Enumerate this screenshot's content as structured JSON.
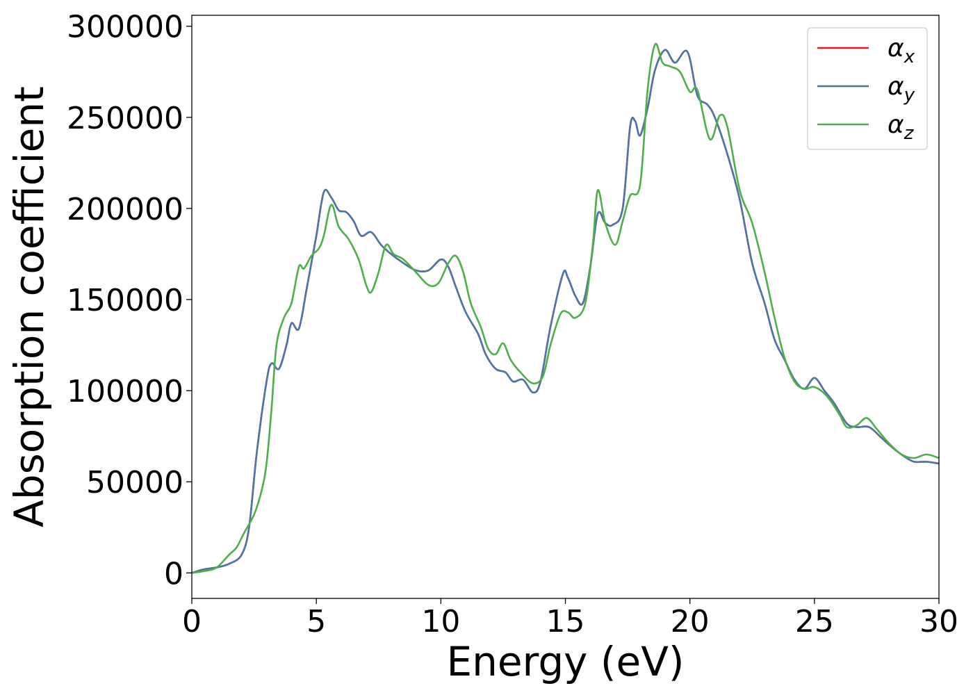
{
  "chart_data": {
    "type": "line",
    "title": "",
    "xlabel": "Energy (eV)",
    "ylabel": "Absorption coefficient",
    "xlim": [
      0,
      30
    ],
    "ylim": [
      -14000,
      306000
    ],
    "xticks": [
      0,
      5,
      10,
      15,
      20,
      25,
      30
    ],
    "xtick_labels": [
      "0",
      "5",
      "10",
      "15",
      "20",
      "25",
      "30"
    ],
    "yticks": [
      0,
      50000,
      100000,
      150000,
      200000,
      250000,
      300000
    ],
    "ytick_labels": [
      "0",
      "50000",
      "100000",
      "150000",
      "200000",
      "250000",
      "300000"
    ],
    "grid": false,
    "legend_position": "top-right",
    "series": [
      {
        "name": "α",
        "subscript": "x",
        "color": "#e41a1c",
        "points": [
          [
            0,
            0
          ],
          [
            0.5,
            2000
          ],
          [
            1,
            3000
          ],
          [
            1.5,
            5000
          ],
          [
            2,
            10000
          ],
          [
            2.3,
            25000
          ],
          [
            2.6,
            65000
          ],
          [
            3,
            105000
          ],
          [
            3.2,
            115000
          ],
          [
            3.5,
            112000
          ],
          [
            3.8,
            125000
          ],
          [
            4,
            137000
          ],
          [
            4.3,
            134000
          ],
          [
            4.6,
            155000
          ],
          [
            4.8,
            170000
          ],
          [
            5,
            185000
          ],
          [
            5.3,
            209000
          ],
          [
            5.6,
            206000
          ],
          [
            5.9,
            199000
          ],
          [
            6.2,
            198000
          ],
          [
            6.5,
            193000
          ],
          [
            6.8,
            185000
          ],
          [
            7.2,
            187000
          ],
          [
            7.6,
            180000
          ],
          [
            8,
            175000
          ],
          [
            8.5,
            170000
          ],
          [
            9,
            166000
          ],
          [
            9.5,
            166000
          ],
          [
            10,
            172000
          ],
          [
            10.3,
            168000
          ],
          [
            10.6,
            157000
          ],
          [
            11,
            143000
          ],
          [
            11.5,
            131000
          ],
          [
            11.8,
            120000
          ],
          [
            12.2,
            112000
          ],
          [
            12.6,
            110000
          ],
          [
            12.9,
            105000
          ],
          [
            13.3,
            106000
          ],
          [
            13.7,
            99000
          ],
          [
            14,
            105000
          ],
          [
            14.4,
            135000
          ],
          [
            14.9,
            164000
          ],
          [
            15.1,
            162000
          ],
          [
            15.4,
            152000
          ],
          [
            15.7,
            148000
          ],
          [
            16,
            168000
          ],
          [
            16.3,
            197000
          ],
          [
            16.6,
            192000
          ],
          [
            16.9,
            191000
          ],
          [
            17.3,
            200000
          ],
          [
            17.6,
            245000
          ],
          [
            17.8,
            248000
          ],
          [
            18,
            240000
          ],
          [
            18.3,
            255000
          ],
          [
            18.6,
            276000
          ],
          [
            19,
            287000
          ],
          [
            19.4,
            280000
          ],
          [
            19.9,
            286000
          ],
          [
            20.3,
            262000
          ],
          [
            20.7,
            257000
          ],
          [
            21,
            250000
          ],
          [
            21.5,
            230000
          ],
          [
            22,
            205000
          ],
          [
            22.5,
            170000
          ],
          [
            23,
            148000
          ],
          [
            23.4,
            128000
          ],
          [
            23.8,
            117000
          ],
          [
            24.2,
            106000
          ],
          [
            24.6,
            101000
          ],
          [
            25,
            107000
          ],
          [
            25.4,
            100000
          ],
          [
            25.8,
            93000
          ],
          [
            26.3,
            82000
          ],
          [
            26.7,
            80000
          ],
          [
            27.2,
            80000
          ],
          [
            27.7,
            74000
          ],
          [
            28.2,
            68000
          ],
          [
            28.6,
            64000
          ],
          [
            29,
            61000
          ],
          [
            29.5,
            61000
          ],
          [
            30,
            60000
          ]
        ]
      },
      {
        "name": "α",
        "subscript": "y",
        "color": "#4a77a8",
        "points": [
          [
            0,
            0
          ],
          [
            0.5,
            2000
          ],
          [
            1,
            3000
          ],
          [
            1.5,
            5000
          ],
          [
            2,
            10000
          ],
          [
            2.3,
            25000
          ],
          [
            2.6,
            65000
          ],
          [
            3,
            105000
          ],
          [
            3.2,
            115000
          ],
          [
            3.5,
            112000
          ],
          [
            3.8,
            125000
          ],
          [
            4,
            137000
          ],
          [
            4.3,
            134000
          ],
          [
            4.6,
            155000
          ],
          [
            4.8,
            170000
          ],
          [
            5,
            185000
          ],
          [
            5.3,
            209000
          ],
          [
            5.6,
            206000
          ],
          [
            5.9,
            199000
          ],
          [
            6.2,
            198000
          ],
          [
            6.5,
            193000
          ],
          [
            6.8,
            185000
          ],
          [
            7.2,
            187000
          ],
          [
            7.6,
            180000
          ],
          [
            8,
            175000
          ],
          [
            8.5,
            170000
          ],
          [
            9,
            166000
          ],
          [
            9.5,
            166000
          ],
          [
            10,
            172000
          ],
          [
            10.3,
            168000
          ],
          [
            10.6,
            157000
          ],
          [
            11,
            143000
          ],
          [
            11.5,
            131000
          ],
          [
            11.8,
            120000
          ],
          [
            12.2,
            112000
          ],
          [
            12.6,
            110000
          ],
          [
            12.9,
            105000
          ],
          [
            13.3,
            106000
          ],
          [
            13.7,
            99000
          ],
          [
            14,
            105000
          ],
          [
            14.4,
            135000
          ],
          [
            14.9,
            164000
          ],
          [
            15.1,
            162000
          ],
          [
            15.4,
            152000
          ],
          [
            15.7,
            148000
          ],
          [
            16,
            168000
          ],
          [
            16.3,
            197000
          ],
          [
            16.6,
            192000
          ],
          [
            16.9,
            191000
          ],
          [
            17.3,
            200000
          ],
          [
            17.6,
            245000
          ],
          [
            17.8,
            248000
          ],
          [
            18,
            240000
          ],
          [
            18.3,
            255000
          ],
          [
            18.6,
            276000
          ],
          [
            19,
            287000
          ],
          [
            19.4,
            280000
          ],
          [
            19.9,
            286000
          ],
          [
            20.3,
            262000
          ],
          [
            20.7,
            257000
          ],
          [
            21,
            250000
          ],
          [
            21.5,
            230000
          ],
          [
            22,
            205000
          ],
          [
            22.5,
            170000
          ],
          [
            23,
            148000
          ],
          [
            23.4,
            128000
          ],
          [
            23.8,
            117000
          ],
          [
            24.2,
            106000
          ],
          [
            24.6,
            101000
          ],
          [
            25,
            107000
          ],
          [
            25.4,
            100000
          ],
          [
            25.8,
            93000
          ],
          [
            26.3,
            82000
          ],
          [
            26.7,
            80000
          ],
          [
            27.2,
            80000
          ],
          [
            27.7,
            74000
          ],
          [
            28.2,
            68000
          ],
          [
            28.6,
            64000
          ],
          [
            29,
            61000
          ],
          [
            29.5,
            61000
          ],
          [
            30,
            60000
          ]
        ]
      },
      {
        "name": "α",
        "subscript": "z",
        "color": "#4daf4a",
        "points": [
          [
            0,
            0
          ],
          [
            0.5,
            1000
          ],
          [
            1,
            3000
          ],
          [
            1.5,
            10000
          ],
          [
            1.8,
            14000
          ],
          [
            2.1,
            22000
          ],
          [
            2.5,
            32000
          ],
          [
            2.8,
            45000
          ],
          [
            3,
            60000
          ],
          [
            3.2,
            90000
          ],
          [
            3.4,
            125000
          ],
          [
            3.7,
            140000
          ],
          [
            4,
            148000
          ],
          [
            4.3,
            168000
          ],
          [
            4.5,
            167000
          ],
          [
            4.8,
            174000
          ],
          [
            5.1,
            178000
          ],
          [
            5.3,
            185000
          ],
          [
            5.6,
            202000
          ],
          [
            5.9,
            190000
          ],
          [
            6.3,
            183000
          ],
          [
            6.7,
            172000
          ],
          [
            7,
            158000
          ],
          [
            7.2,
            154000
          ],
          [
            7.5,
            165000
          ],
          [
            7.8,
            180000
          ],
          [
            8.1,
            175000
          ],
          [
            8.5,
            172000
          ],
          [
            9,
            165000
          ],
          [
            9.5,
            158000
          ],
          [
            9.9,
            159000
          ],
          [
            10.3,
            170000
          ],
          [
            10.6,
            174000
          ],
          [
            10.9,
            165000
          ],
          [
            11.2,
            148000
          ],
          [
            11.6,
            135000
          ],
          [
            11.9,
            123000
          ],
          [
            12.2,
            120000
          ],
          [
            12.5,
            126000
          ],
          [
            12.8,
            117000
          ],
          [
            13.2,
            110000
          ],
          [
            13.7,
            104000
          ],
          [
            14.1,
            108000
          ],
          [
            14.4,
            125000
          ],
          [
            14.8,
            142000
          ],
          [
            15.1,
            143000
          ],
          [
            15.4,
            140000
          ],
          [
            15.8,
            148000
          ],
          [
            16.1,
            180000
          ],
          [
            16.3,
            210000
          ],
          [
            16.6,
            192000
          ],
          [
            17,
            180000
          ],
          [
            17.3,
            193000
          ],
          [
            17.6,
            207000
          ],
          [
            18,
            213000
          ],
          [
            18.3,
            265000
          ],
          [
            18.6,
            290000
          ],
          [
            18.9,
            280000
          ],
          [
            19.2,
            278000
          ],
          [
            19.6,
            275000
          ],
          [
            20,
            264000
          ],
          [
            20.3,
            265000
          ],
          [
            20.8,
            238000
          ],
          [
            21.2,
            251000
          ],
          [
            21.5,
            245000
          ],
          [
            22,
            210000
          ],
          [
            22.5,
            192000
          ],
          [
            23,
            165000
          ],
          [
            23.4,
            140000
          ],
          [
            23.8,
            118000
          ],
          [
            24.2,
            105000
          ],
          [
            24.6,
            101000
          ],
          [
            25,
            102000
          ],
          [
            25.5,
            97000
          ],
          [
            26,
            87000
          ],
          [
            26.3,
            80000
          ],
          [
            26.7,
            81000
          ],
          [
            27.1,
            85000
          ],
          [
            27.5,
            79000
          ],
          [
            28,
            71000
          ],
          [
            28.5,
            65000
          ],
          [
            29,
            63000
          ],
          [
            29.5,
            65000
          ],
          [
            30,
            63000
          ]
        ]
      }
    ]
  }
}
